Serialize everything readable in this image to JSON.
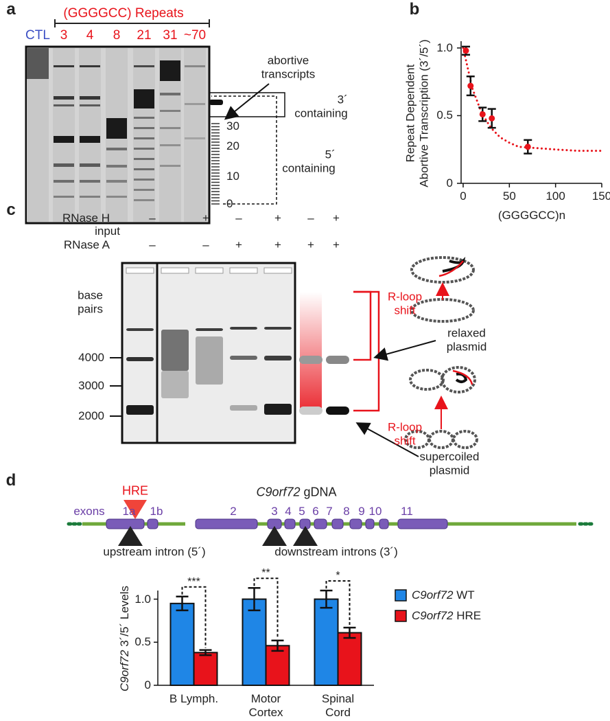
{
  "panel_labels": [
    "a",
    "b",
    "c",
    "d"
  ],
  "gel_a": {
    "title": "(GGGGCC) Repeats",
    "control": "CTL",
    "lanes": [
      "3",
      "4",
      "8",
      "21",
      "31",
      "~70"
    ],
    "ladder": [
      "30",
      "20",
      "10",
      "0"
    ],
    "arrow_label": "abortive\ntranscripts",
    "region_3": "3´\ncontaining",
    "region_5": "5´\ncontaining"
  },
  "gel_c": {
    "rows": [
      {
        "label": "RNase H",
        "signs": [
          "–",
          "+",
          "–",
          "+",
          "–",
          "+"
        ]
      },
      {
        "label": "RNase A",
        "signs": [
          "–",
          "–",
          "+",
          "+",
          "+",
          "+"
        ]
      }
    ],
    "input": "input",
    "marker_title": "base\npairs",
    "markers": [
      "4000",
      "3000",
      "2000"
    ],
    "shift_labels": [
      "R-loop\nshift",
      "R-loop\nshift"
    ],
    "plasmids": [
      "relaxed\nplasmid",
      "supercoiled\nplasmid"
    ]
  },
  "gene": {
    "name": "C9orf72 gDNA",
    "hre": "HRE",
    "exons_label": "exons",
    "exons": [
      "1a",
      "1b",
      "2",
      "3",
      "4",
      "5",
      "6",
      "7",
      "8",
      "9",
      "10",
      "11"
    ],
    "upstream": "upstream intron (5´)",
    "downstream": "downstream introns (3´)"
  },
  "chart_data": [
    {
      "type": "scatter",
      "y_label": "Repeat Dependent\nAbortive Transcription (3´/5´)",
      "x_label": "(GGGGCC)n",
      "xlim": [
        0,
        150
      ],
      "xticks": [
        0,
        50,
        100,
        150
      ],
      "ylim": [
        0,
        1.05
      ],
      "yticks": [
        0,
        0.5,
        {
          "value": 1,
          "label": "1.0"
        }
      ],
      "x": [
        3,
        8,
        21,
        31,
        70
      ],
      "values": [
        0.98,
        0.72,
        0.51,
        0.48,
        0.27
      ],
      "errors": [
        0.03,
        0.07,
        0.05,
        0.07,
        0.05
      ],
      "color": "#e8131b",
      "fit": {
        "x": [
          0,
          10,
          20,
          30,
          40,
          50,
          60,
          80,
          100,
          125,
          150
        ],
        "values": [
          1.0,
          0.7,
          0.52,
          0.41,
          0.34,
          0.3,
          0.27,
          0.26,
          0.25,
          0.24,
          0.24
        ],
        "color": "#e8131b"
      }
    },
    {
      "type": "bar",
      "y_label": "C9orf72 3´/5´ Levels",
      "categories": [
        "B Lymph.",
        "Motor\nCortex",
        "Spinal\nCord"
      ],
      "ylim": [
        0,
        1.1
      ],
      "yticks": [
        0,
        0.5,
        {
          "value": 1,
          "label": "1.0"
        }
      ],
      "series": [
        {
          "name": "C9orf72 WT",
          "color": "#1f86e6",
          "values": [
            0.95,
            1.0,
            1.0
          ],
          "errors": [
            0.08,
            0.13,
            0.1
          ]
        },
        {
          "name": "C9orf72 HRE",
          "color": "#e8131b",
          "values": [
            0.38,
            0.46,
            0.61
          ],
          "errors": [
            0.03,
            0.06,
            0.06
          ]
        }
      ],
      "significance": [
        "***",
        "**",
        "*"
      ]
    }
  ]
}
